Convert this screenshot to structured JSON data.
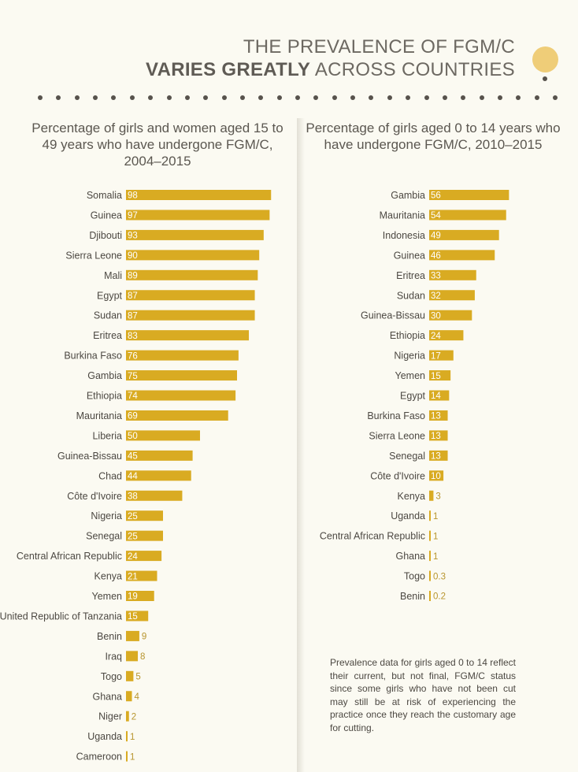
{
  "header": {
    "title_line1": "THE PREVALENCE OF FGM/C",
    "title_line2_bold": "VARIES GREATLY",
    "title_line2_rest": " ACROSS COUNTRIES"
  },
  "colors": {
    "bar": "#d9ab22",
    "accent_circle": "#efcd78",
    "dots": "#57524c",
    "background": "#fbfaf2"
  },
  "footnote": "Prevalence data for girls aged 0 to 14 reflect their current, but not final, FGM/C status since some girls who have not been cut may still be at risk of experiencing the practice once they reach the customary age for cutting.",
  "chart_data": [
    {
      "type": "bar",
      "orientation": "horizontal",
      "title": "Percentage of girls and women aged 15 to 49 years who have undergone FGM/C, 2004–2015",
      "xlim": [
        0,
        100
      ],
      "categories": [
        "Somalia",
        "Guinea",
        "Djibouti",
        "Sierra Leone",
        "Mali",
        "Egypt",
        "Sudan",
        "Eritrea",
        "Burkina Faso",
        "Gambia",
        "Ethiopia",
        "Mauritania",
        "Liberia",
        "Guinea-Bissau",
        "Chad",
        "Côte d'Ivoire",
        "Nigeria",
        "Senegal",
        "Central African Republic",
        "Kenya",
        "Yemen",
        "United Republic of Tanzania",
        "Benin",
        "Iraq",
        "Togo",
        "Ghana",
        "Niger",
        "Uganda",
        "Cameroon"
      ],
      "values": [
        98,
        97,
        93,
        90,
        89,
        87,
        87,
        83,
        76,
        75,
        74,
        69,
        50,
        45,
        44,
        38,
        25,
        25,
        24,
        21,
        19,
        15,
        9,
        8,
        5,
        4,
        2,
        1,
        1
      ],
      "value_labels": [
        "98",
        "97",
        "93",
        "90",
        "89",
        "87",
        "87",
        "83",
        "76",
        "75",
        "74",
        "69",
        "50",
        "45",
        "44",
        "38",
        "25",
        "25",
        "24",
        "21",
        "19",
        "15",
        "9",
        "8",
        "5",
        "4",
        "2",
        "1",
        "1"
      ]
    },
    {
      "type": "bar",
      "orientation": "horizontal",
      "title": "Percentage of girls aged 0 to 14 years who have undergone FGM/C, 2010–2015",
      "xlim": [
        0,
        60
      ],
      "categories": [
        "Gambia",
        "Mauritania",
        "Indonesia",
        "Guinea",
        "Eritrea",
        "Sudan",
        "Guinea-Bissau",
        "Ethiopia",
        "Nigeria",
        "Yemen",
        "Egypt",
        "Burkina Faso",
        "Sierra Leone",
        "Senegal",
        "Côte d'Ivoire",
        "Kenya",
        "Uganda",
        "Central African Republic",
        "Ghana",
        "Togo",
        "Benin"
      ],
      "values": [
        56,
        54,
        49,
        46,
        33,
        32,
        30,
        24,
        17,
        15,
        14,
        13,
        13,
        13,
        10,
        3,
        1,
        1,
        1,
        0.3,
        0.2
      ],
      "value_labels": [
        "56",
        "54",
        "49",
        "46",
        "33",
        "32",
        "30",
        "24",
        "17",
        "15",
        "14",
        "13",
        "13",
        "13",
        "10",
        "3",
        "1",
        "1",
        "1",
        "0.3",
        "0.2"
      ]
    }
  ]
}
